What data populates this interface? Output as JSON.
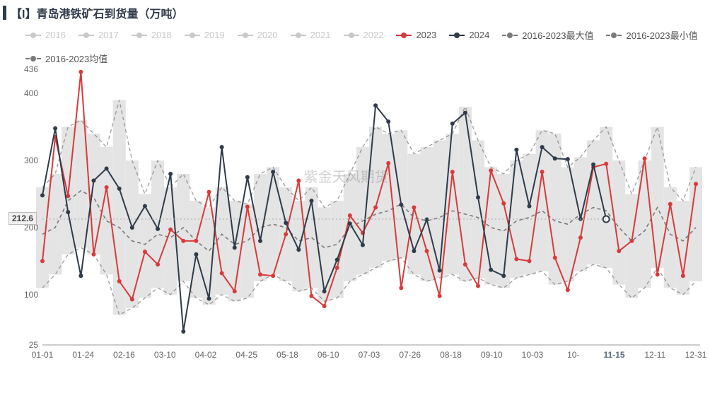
{
  "title": "【I】青岛港铁矿石到货量（万吨）",
  "watermark": "紫金天风期货",
  "highlight_value": "212.6",
  "colors": {
    "inactive": "#c9c9c9",
    "s2023": "#d83a3a",
    "s2024": "#2f3b4a",
    "range_max": "#7a7a7a",
    "range_min": "#7a7a7a",
    "range_mean": "#7a7a7a",
    "grid": "#e6e6e6",
    "band_fill": "#d9d9d9",
    "axis_text": "#666666",
    "highlight_x": "#5a6b7d"
  },
  "legend": [
    {
      "label": "2016",
      "color_key": "inactive",
      "dim": true,
      "style": "solid"
    },
    {
      "label": "2017",
      "color_key": "inactive",
      "dim": true,
      "style": "solid"
    },
    {
      "label": "2018",
      "color_key": "inactive",
      "dim": true,
      "style": "solid"
    },
    {
      "label": "2019",
      "color_key": "inactive",
      "dim": true,
      "style": "solid"
    },
    {
      "label": "2020",
      "color_key": "inactive",
      "dim": true,
      "style": "solid"
    },
    {
      "label": "2021",
      "color_key": "inactive",
      "dim": true,
      "style": "solid"
    },
    {
      "label": "2022",
      "color_key": "inactive",
      "dim": true,
      "style": "solid"
    },
    {
      "label": "2023",
      "color_key": "s2023",
      "dim": false,
      "style": "solid"
    },
    {
      "label": "2024",
      "color_key": "s2024",
      "dim": false,
      "style": "solid"
    },
    {
      "label": "2016-2023最大值",
      "color_key": "range_max",
      "dim": false,
      "style": "dash"
    },
    {
      "label": "2016-2023最小值",
      "color_key": "range_min",
      "dim": false,
      "style": "dash"
    },
    {
      "label": "2016-2023均值",
      "color_key": "range_mean",
      "dim": false,
      "style": "dash"
    }
  ],
  "y_axis": {
    "min": 25,
    "max": 436,
    "ticks": [
      25,
      100,
      200,
      300,
      400,
      436
    ],
    "highlight": 212.6,
    "fontsize": 12,
    "color": "#666666"
  },
  "x_axis": {
    "labels": [
      "01-01",
      "01-24",
      "02-16",
      "03-10",
      "04-02",
      "04-25",
      "05-18",
      "06-10",
      "07-03",
      "07-26",
      "08-18",
      "09-10",
      "10-03",
      "10-",
      "11-15",
      "12-11",
      "12-31"
    ],
    "highlight_index": 14,
    "fontsize": 12,
    "color": "#666666"
  },
  "plot": {
    "background": "#ffffff",
    "line_width": 2,
    "marker_radius": 3,
    "dash_pattern": "5,4",
    "band_opacity": 0.7
  },
  "series_main": {
    "s2023": [
      150,
      335,
      247,
      432,
      160,
      260,
      120,
      93,
      164,
      145,
      197,
      180,
      180,
      253,
      132,
      105,
      231,
      130,
      128,
      190,
      270,
      98,
      83,
      140,
      218,
      192,
      230,
      296,
      110,
      230,
      165,
      98,
      283,
      145,
      113,
      285,
      236,
      153,
      150,
      283,
      155,
      107,
      185,
      290,
      295,
      165,
      180,
      303,
      130,
      235,
      128,
      265
    ],
    "s2024": [
      248,
      348,
      223,
      128,
      270,
      288,
      258,
      200,
      232,
      198,
      280,
      45,
      160,
      94,
      320,
      170,
      275,
      180,
      283,
      207,
      167,
      240,
      105,
      152,
      206,
      174,
      382,
      358,
      234,
      165,
      212,
      136,
      355,
      371,
      245,
      137,
      128,
      316,
      232,
      320,
      303,
      302,
      213,
      294,
      212.6
    ]
  },
  "series_stats": {
    "mean": [
      190,
      200,
      240,
      255,
      245,
      210,
      200,
      180,
      175,
      190,
      185,
      200,
      180,
      165,
      190,
      175,
      180,
      200,
      205,
      200,
      180,
      185,
      170,
      175,
      200,
      210,
      220,
      225,
      235,
      215,
      210,
      215,
      225,
      220,
      215,
      200,
      195,
      210,
      215,
      225,
      210,
      205,
      220,
      230,
      225,
      200,
      180,
      195,
      230,
      190,
      180,
      200
    ],
    "max": [
      260,
      280,
      350,
      360,
      340,
      320,
      390,
      300,
      250,
      300,
      260,
      280,
      240,
      230,
      260,
      240,
      235,
      280,
      290,
      260,
      240,
      260,
      230,
      240,
      280,
      320,
      350,
      340,
      345,
      310,
      320,
      330,
      340,
      380,
      330,
      290,
      280,
      300,
      310,
      345,
      340,
      290,
      305,
      330,
      350,
      300,
      250,
      300,
      350,
      260,
      240,
      290
    ],
    "min": [
      110,
      130,
      160,
      170,
      160,
      130,
      70,
      80,
      95,
      110,
      100,
      120,
      95,
      85,
      100,
      90,
      95,
      120,
      130,
      120,
      105,
      110,
      90,
      95,
      120,
      130,
      140,
      150,
      155,
      130,
      120,
      125,
      130,
      120,
      125,
      115,
      110,
      125,
      130,
      135,
      115,
      120,
      135,
      145,
      140,
      115,
      95,
      110,
      140,
      110,
      100,
      120
    ]
  }
}
